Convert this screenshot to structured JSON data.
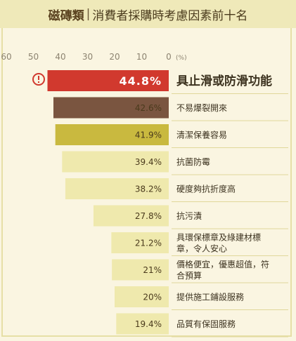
{
  "title": {
    "category": "磁磚類",
    "separator": "|",
    "subtitle": "消費者採購時考慮因素前十名"
  },
  "chart_data": {
    "type": "bar",
    "orientation": "horizontal",
    "x_direction": "right-to-left",
    "xlim": [
      0,
      60
    ],
    "xticks": [
      "60",
      "50",
      "40",
      "30",
      "20",
      "10",
      "0"
    ],
    "unit_label": "(%)",
    "categories": [
      "具止滑或防滑功能",
      "不易爆裂開來",
      "清潔保養容易",
      "抗菌防霉",
      "硬度夠抗折度高",
      "抗污漬",
      "具環保標章及綠建材標章，令人安心",
      "價格便宜，優惠超值，符合預算",
      "提供施工鋪設服務",
      "品質有保固服務"
    ],
    "category_lines": [
      [
        "具止滑或防滑功能"
      ],
      [
        "不易爆裂開來"
      ],
      [
        "清潔保養容易"
      ],
      [
        "抗菌防霉"
      ],
      [
        "硬度夠抗折度高"
      ],
      [
        "抗污漬"
      ],
      [
        "具環保標章及綠建材標",
        "章，令人安心"
      ],
      [
        "價格便宜，優惠超值，符",
        "合預算"
      ],
      [
        "提供施工鋪設服務"
      ],
      [
        "品質有保固服務"
      ]
    ],
    "values": [
      44.8,
      42.6,
      41.9,
      39.4,
      38.2,
      27.8,
      21.2,
      21,
      20,
      19.4
    ],
    "value_labels": [
      "44.8%",
      "42.6%",
      "41.9%",
      "39.4%",
      "38.2%",
      "27.8%",
      "21.2%",
      "21%",
      "20%",
      "19.4%"
    ],
    "bar_colors": [
      "#d1392e",
      "#7a5540",
      "#c9b93f",
      "#efe9ad",
      "#efe9ad",
      "#efe9ad",
      "#efe9ad",
      "#efe9ad",
      "#efe9ad",
      "#efe9ad"
    ],
    "value_label_colors": [
      "#ffffff",
      "#4a3a1c",
      "#4a3a1c",
      "#4a3a1c",
      "#4a3a1c",
      "#4a3a1c",
      "#4a3a1c",
      "#4a3a1c",
      "#4a3a1c",
      "#4a3a1c"
    ],
    "highlight_index": 0,
    "highlight_icon": "exclamation-circle-icon",
    "grid": false
  },
  "colors": {
    "header_bg": "#efe9b9",
    "page_bg": "#faf5e1",
    "frame": "#e6dfa6",
    "accent_red": "#d1392e",
    "divider": "#e0d79a",
    "text": "#3d3320"
  }
}
